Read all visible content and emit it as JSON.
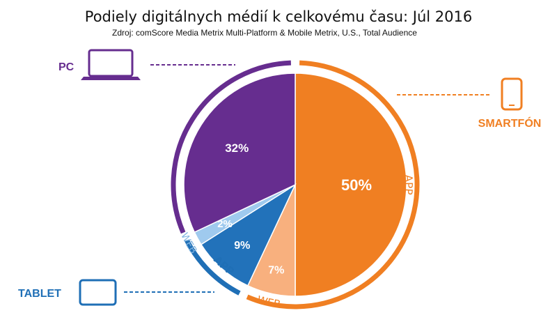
{
  "chart_data": {
    "type": "pie",
    "title": "Podiely digitálnych médií k celkovému času: Júl 2016",
    "subtitle": "Zdroj: comScore Media Metrix Multi-Platform & Mobile Metrix, U.S., Total Audience",
    "slices": [
      {
        "device": "SMARTFÓN",
        "channel": "APP",
        "value": 50,
        "label": "50%",
        "color": "#f07f22"
      },
      {
        "device": "SMARTFÓN",
        "channel": "WEB",
        "value": 7,
        "label": "7%",
        "color": "#f8b07e"
      },
      {
        "device": "TABLET",
        "channel": "APP",
        "value": 9,
        "label": "9%",
        "color": "#2272ba"
      },
      {
        "device": "TABLET",
        "channel": "WEB",
        "value": 2,
        "label": "2%",
        "color": "#9fcaee"
      },
      {
        "device": "PC",
        "channel": "",
        "value": 32,
        "label": "32%",
        "color": "#662d8f"
      }
    ],
    "devices": [
      {
        "name": "SMARTFÓN",
        "color": "#f07f22",
        "icon": "smartphone-icon"
      },
      {
        "name": "TABLET",
        "color": "#1f6fb6",
        "icon": "tablet-icon"
      },
      {
        "name": "PC",
        "color": "#662d8f",
        "icon": "laptop-icon"
      }
    ],
    "ring_labels": {
      "app": "APP",
      "web": "WEB"
    }
  }
}
